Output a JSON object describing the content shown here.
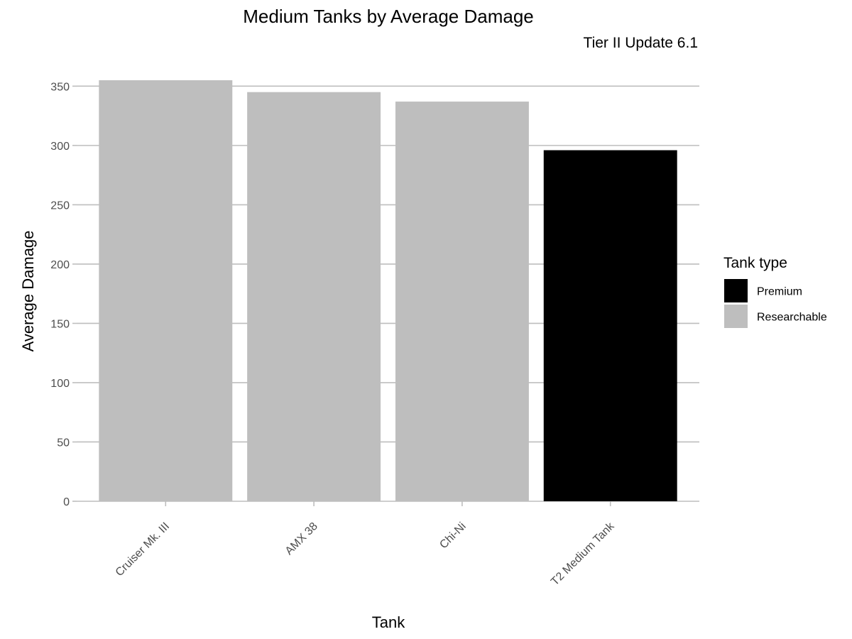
{
  "chart_data": {
    "type": "bar",
    "title": "Medium Tanks by Average Damage",
    "subtitle": "Tier II Update 6.1",
    "xlabel": "Tank",
    "ylabel": "Average Damage",
    "categories": [
      "Cruiser Mk. III",
      "AMX 38",
      "Chi-Ni",
      "T2 Medium Tank"
    ],
    "values": [
      355,
      345,
      337,
      296
    ],
    "groups": [
      "Researchable",
      "Researchable",
      "Researchable",
      "Premium"
    ],
    "ylim": [
      0,
      355
    ],
    "yticks": [
      0,
      50,
      100,
      150,
      200,
      250,
      300,
      350
    ],
    "grid": true,
    "legend": {
      "title": "Tank type",
      "placement": "right",
      "items": [
        {
          "label": "Premium",
          "color": "#000000"
        },
        {
          "label": "Researchable",
          "color": "#bebebe"
        }
      ]
    },
    "colors": {
      "Premium": "#000000",
      "Researchable": "#bebebe",
      "grid": "#bebebe",
      "axis_text": "#4d4d4d"
    }
  }
}
